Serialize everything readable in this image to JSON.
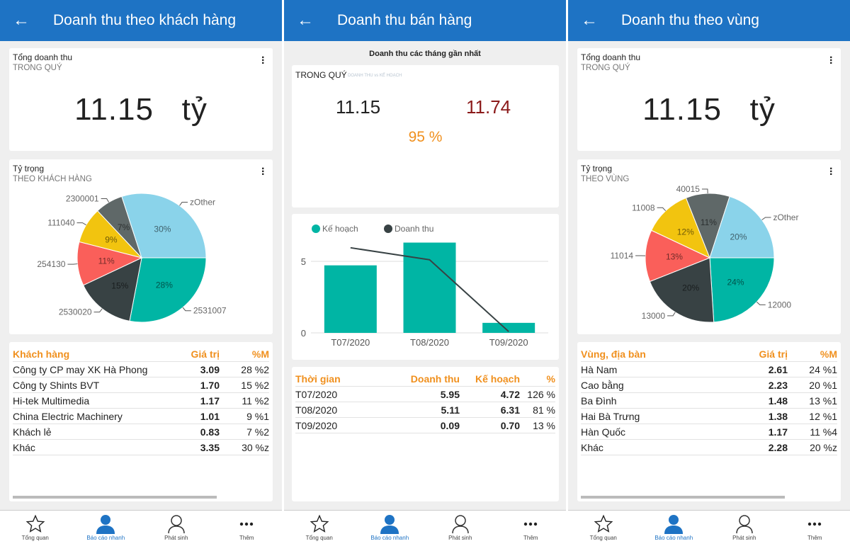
{
  "colors": {
    "header": "#1e73c4",
    "accent": "#f0901e",
    "teal": "#00b5a4",
    "dark": "#384244",
    "red": "#fa5f5a",
    "yellow": "#f2c40f",
    "gray": "#5f6868",
    "lightblue": "#8ad3ea",
    "plan_red": "#8b1a1a"
  },
  "nav": [
    {
      "label": "Tổng quan",
      "icon": "star-icon"
    },
    {
      "label": "Báo cáo nhanh",
      "icon": "person-filled-icon",
      "active": true
    },
    {
      "label": "Phát sinh",
      "icon": "person-outline-icon"
    },
    {
      "label": "Thêm",
      "icon": "more-icon"
    }
  ],
  "p1": {
    "title": "Doanh thu theo khách hàng",
    "total": {
      "title": "Tổng doanh thu",
      "subtitle": "TRONG QUÝ",
      "value": "11.15   tỷ"
    },
    "share": {
      "title": "Tỷ trọng",
      "subtitle": "THEO KHÁCH HÀNG"
    },
    "table": {
      "headers": [
        "Khách hàng",
        "Giá trị",
        "%M"
      ],
      "rows": [
        [
          "Công ty CP may XK Hà Phong",
          "3.09",
          "28 %2"
        ],
        [
          "Công ty Shints BVT",
          "1.70",
          "15 %2"
        ],
        [
          "Hi-tek Multimedia",
          "1.17",
          "11 %2"
        ],
        [
          "China Electric Machinery",
          "1.01",
          "9 %1"
        ],
        [
          "Khách lẻ",
          "0.83",
          "7 %2"
        ],
        [
          "Khác",
          "3.35",
          "30 %z"
        ]
      ]
    }
  },
  "p2": {
    "title": "Doanh thu bán hàng",
    "section": "Doanh thu các tháng gần nhất",
    "summary": {
      "title": "TRONG QUÝ",
      "subtitle": "DOANH THU vs KẾ HOẠCH",
      "revenue": "11.15",
      "plan": "11.74",
      "percent": "95 %"
    },
    "table": {
      "headers": [
        "Thời gian",
        "Doanh thu",
        "Kế hoạch",
        "%"
      ],
      "rows": [
        [
          "T07/2020",
          "5.95",
          "4.72",
          "126 %"
        ],
        [
          "T08/2020",
          "5.11",
          "6.31",
          "81 %"
        ],
        [
          "T09/2020",
          "0.09",
          "0.70",
          "13 %"
        ]
      ]
    }
  },
  "p3": {
    "title": "Doanh thu theo vùng",
    "total": {
      "title": "Tổng doanh thu",
      "subtitle": "TRONG QUÝ",
      "value": "11.15   tỷ"
    },
    "share": {
      "title": "Tỷ trọng",
      "subtitle": "THEO VÙNG"
    },
    "table": {
      "headers": [
        "Vùng, địa bàn",
        "Giá trị",
        "%M"
      ],
      "rows": [
        [
          "Hà Nam",
          "2.61",
          "24 %1"
        ],
        [
          "Cao bằng",
          "2.23",
          "20 %1"
        ],
        [
          "Ba Đình",
          "1.48",
          "13 %1"
        ],
        [
          "Hai Bà Trưng",
          "1.38",
          "12 %1"
        ],
        [
          "Hàn Quốc",
          "1.17",
          "11 %4"
        ],
        [
          "Khác",
          "2.28",
          "20 %z"
        ]
      ]
    }
  },
  "chart_data": [
    {
      "type": "pie",
      "labels": [
        "2531007",
        "2530020",
        "254130",
        "111040",
        "2300001",
        "zOther"
      ],
      "values": [
        28,
        15,
        11,
        9,
        7,
        30
      ],
      "colors": [
        "#00b5a4",
        "#384244",
        "#fa5f5a",
        "#f2c40f",
        "#5f6868",
        "#8ad3ea"
      ],
      "data_labels": [
        "28%",
        "15%",
        "11%",
        "9%",
        "7%",
        "30%"
      ]
    },
    {
      "type": "bar",
      "categories": [
        "T07/2020",
        "T08/2020",
        "T09/2020"
      ],
      "series": [
        {
          "name": "Kế hoạch",
          "type": "bar",
          "values": [
            4.72,
            6.31,
            0.7
          ],
          "color": "#00b5a4"
        },
        {
          "name": "Doanh thu",
          "type": "line",
          "values": [
            5.95,
            5.11,
            0.09
          ],
          "color": "#384244"
        }
      ],
      "yticks": [
        "0",
        "5"
      ],
      "ylim": [
        0,
        7
      ],
      "grid": true,
      "legend": "top-left"
    },
    {
      "type": "pie",
      "labels": [
        "12000",
        "13000",
        "11014",
        "11008",
        "40015",
        "zOther"
      ],
      "values": [
        24,
        20,
        13,
        12,
        11,
        20
      ],
      "colors": [
        "#00b5a4",
        "#384244",
        "#fa5f5a",
        "#f2c40f",
        "#5f6868",
        "#8ad3ea"
      ],
      "data_labels": [
        "24%",
        "20%",
        "13%",
        "12%",
        "11%",
        "20%"
      ]
    }
  ]
}
